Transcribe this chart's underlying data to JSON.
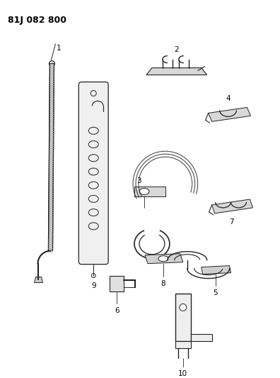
{
  "title": "81J 082 800",
  "bg": "#ffffff",
  "lc": "#222222",
  "tc": "#000000",
  "title_fs": 9,
  "label_fs": 7.5
}
